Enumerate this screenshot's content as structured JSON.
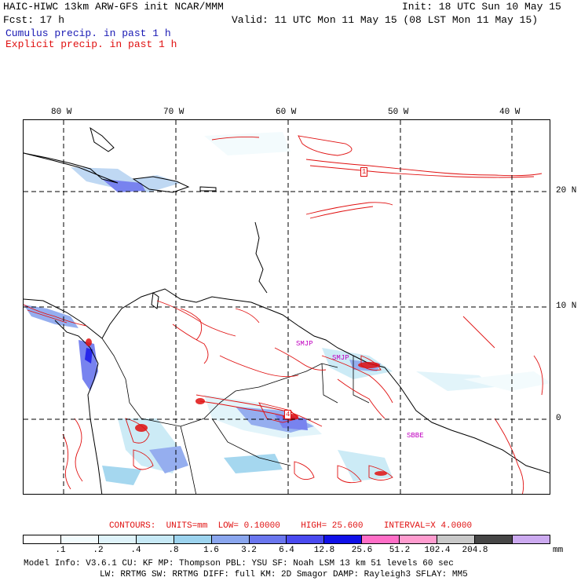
{
  "header": {
    "title_left": "HAIC-HIWC 13km ARW-GFS init   NCAR/MMM",
    "init": "Init: 18 UTC Sun 10 May 15",
    "fcst": "Fcst:   17 h",
    "valid": "Valid: 11 UTC Mon 11 May 15 (08 LST Mon 11 May 15)",
    "cumulus_label": "Cumulus precip. in past 1 h",
    "explicit_label": "Explicit precip. in past 1 h"
  },
  "map": {
    "lon_labels": [
      "80 W",
      "70 W",
      "60 W",
      "50 W",
      "40 W"
    ],
    "lat_labels": [
      "20 N",
      "10 N",
      "0"
    ],
    "station_labels": [
      "SMJP",
      "SMJP",
      "SBBE"
    ],
    "max_labels": [
      "1",
      "4"
    ],
    "colors": {
      "contour": "#e01010",
      "coast": "#000000",
      "grid": "#000000"
    }
  },
  "contours_text": {
    "title": "CONTOURS:",
    "units": "UNITS=mm",
    "low": "LOW= 0.10000",
    "high": "HIGH=  25.600",
    "interval": "INTERVAL=X  4.0000"
  },
  "colorbar": {
    "colors": [
      "#ffffff",
      "#f2fbfd",
      "#dff3fa",
      "#c7e9f6",
      "#9cd3ee",
      "#8aa6ee",
      "#6a76ee",
      "#4a4af0",
      "#1010e8",
      "#ff6ec7",
      "#ff9ccf",
      "#c8c8c8",
      "#464646",
      "#ccaaf0"
    ],
    "labels": [
      ".1",
      ".2",
      ".4",
      ".8",
      "1.6",
      "3.2",
      "6.4",
      "12.8",
      "25.6",
      "51.2",
      "102.4",
      "204.8"
    ],
    "units": "mm"
  },
  "model_info": {
    "line1": "Model Info: V3.6.1    CU: KF     MP: Thompson    PBL: YSU      SF: Noah LSM     13 km    51 levels   60 sec",
    "line2": "LW: RRTMG    SW: RRTMG   DIFF: full    KM: 2D Smagor DAMP: Rayleigh3  SFLAY: MM5"
  }
}
